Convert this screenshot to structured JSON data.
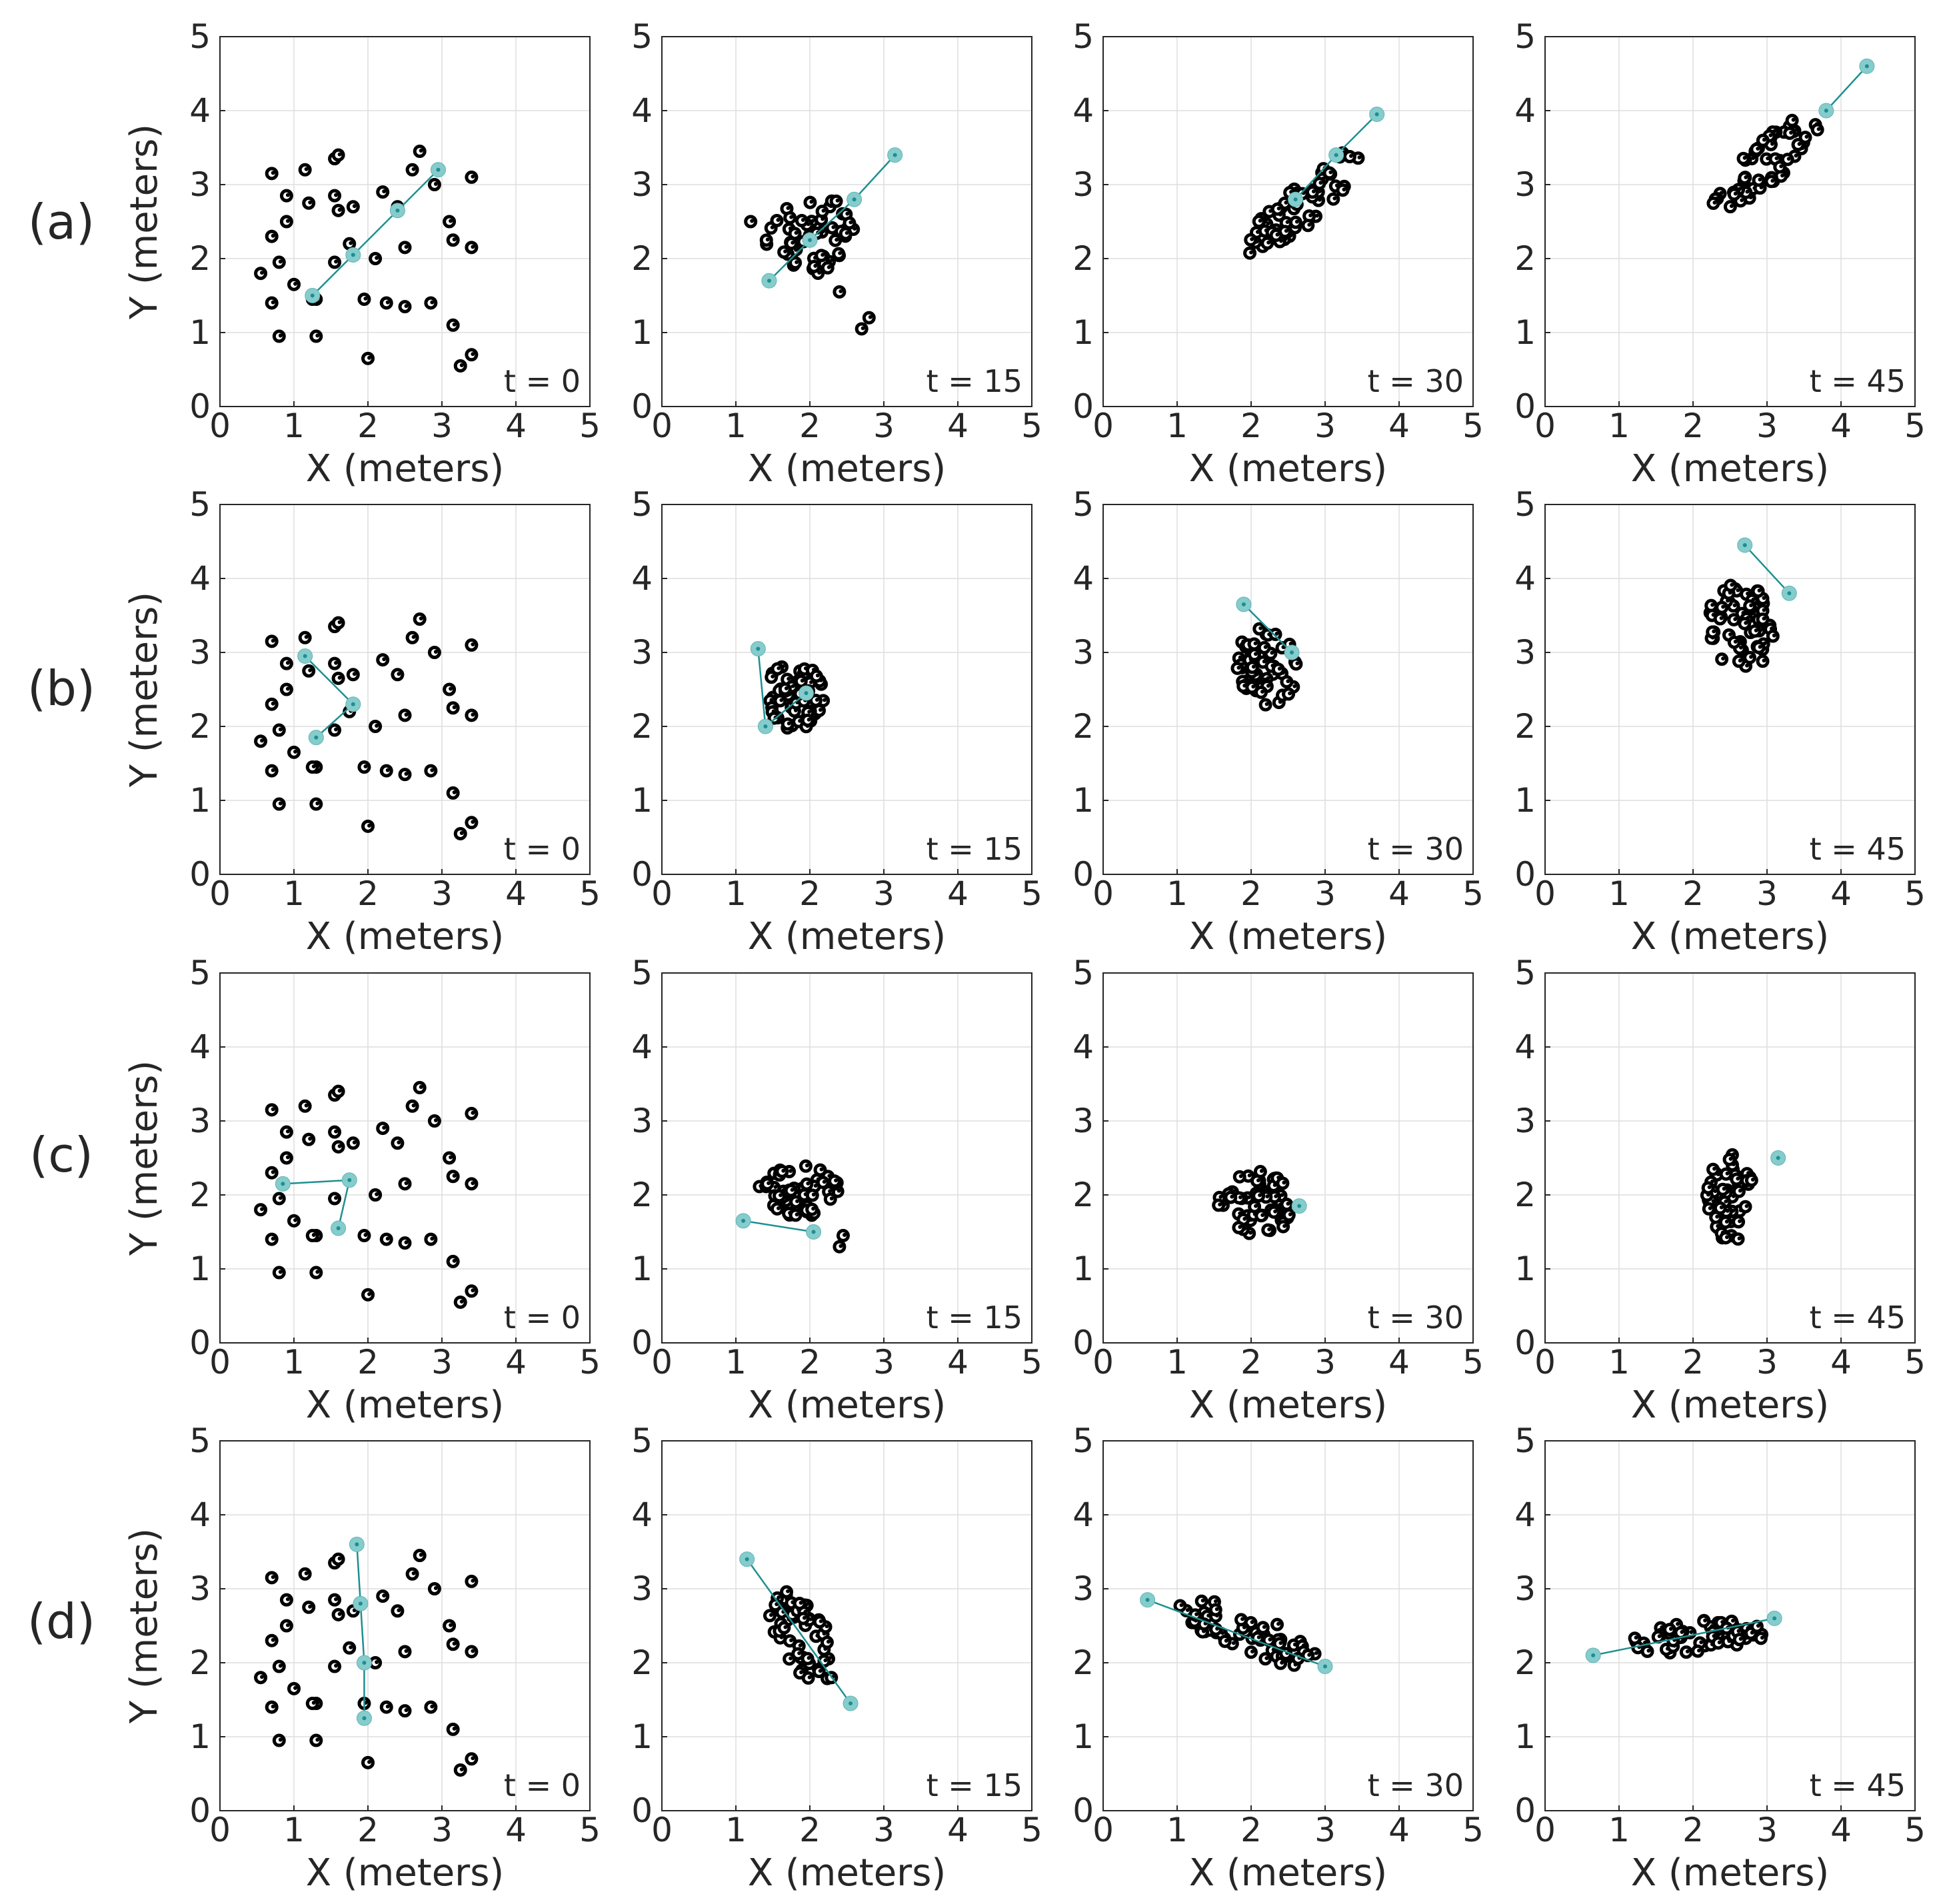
{
  "figure": {
    "row_labels": [
      "(a)",
      "(b)",
      "(c)",
      "(d)"
    ],
    "x_axis_label": "X (meters)",
    "y_axis_label": "Y (meters)",
    "time_labels": [
      "t = 0",
      "t = 15",
      "t = 30",
      "t = 45"
    ]
  },
  "colors": {
    "agent": "#000000",
    "leader_link": "#1e8f8f",
    "leader_marker": "#86cccc",
    "grid": "#dedede",
    "axis": "#262626"
  },
  "chart_data": {
    "type": "scatter",
    "description": "4 x 4 grid of scatter plots of agent positions; rows (a)-(d) are scenarios, columns are time steps",
    "xlim": [
      0,
      5
    ],
    "ylim": [
      0,
      5
    ],
    "xticks": [
      0,
      1,
      2,
      3,
      4,
      5
    ],
    "yticks": [
      0,
      1,
      2,
      3,
      4,
      5
    ],
    "grid": true,
    "initial_positions": [
      [
        0.7,
        3.15
      ],
      [
        1.15,
        3.2
      ],
      [
        1.55,
        3.35
      ],
      [
        1.6,
        3.4
      ],
      [
        0.9,
        2.85
      ],
      [
        1.55,
        2.85
      ],
      [
        1.8,
        2.7
      ],
      [
        0.7,
        2.3
      ],
      [
        0.9,
        2.5
      ],
      [
        0.55,
        1.8
      ],
      [
        0.7,
        1.4
      ],
      [
        0.8,
        1.95
      ],
      [
        1.0,
        1.65
      ],
      [
        0.8,
        0.95
      ],
      [
        1.3,
        0.95
      ],
      [
        1.3,
        1.45
      ],
      [
        1.55,
        1.95
      ],
      [
        1.6,
        2.65
      ],
      [
        1.75,
        2.2
      ],
      [
        1.95,
        1.45
      ],
      [
        2.25,
        1.4
      ],
      [
        2.5,
        1.35
      ],
      [
        2.85,
        1.4
      ],
      [
        3.15,
        1.1
      ],
      [
        3.25,
        0.55
      ],
      [
        3.4,
        0.7
      ],
      [
        2.0,
        0.65
      ],
      [
        2.2,
        2.9
      ],
      [
        2.5,
        2.15
      ],
      [
        2.6,
        3.2
      ],
      [
        2.7,
        3.45
      ],
      [
        2.9,
        3.0
      ],
      [
        3.1,
        2.5
      ],
      [
        3.15,
        2.25
      ],
      [
        3.4,
        3.1
      ],
      [
        3.4,
        2.15
      ],
      [
        2.4,
        2.7
      ],
      [
        1.25,
        1.45
      ],
      [
        1.2,
        2.75
      ],
      [
        2.1,
        2.0
      ]
    ],
    "panels": [
      {
        "row": "(a)",
        "t": 0,
        "leaders": [
          [
            1.25,
            1.5
          ],
          [
            1.8,
            2.05
          ],
          [
            2.4,
            2.65
          ],
          [
            2.95,
            3.2
          ]
        ]
      },
      {
        "row": "(a)",
        "t": 15,
        "center": [
          2.0,
          2.3
        ],
        "spread": [
          0.65,
          0.5
        ],
        "angle": 35,
        "count": 52,
        "extras": [
          [
            1.2,
            2.5
          ],
          [
            2.4,
            1.55
          ],
          [
            2.7,
            1.05
          ],
          [
            2.8,
            1.2
          ]
        ],
        "leaders": [
          [
            1.45,
            1.7
          ],
          [
            2.0,
            2.25
          ],
          [
            2.6,
            2.8
          ],
          [
            3.15,
            3.4
          ]
        ]
      },
      {
        "row": "(a)",
        "t": 30,
        "center": [
          2.7,
          2.75
        ],
        "spread": [
          1.0,
          0.28
        ],
        "angle": 42,
        "count": 56,
        "leaders": [
          [
            2.6,
            2.8
          ],
          [
            3.15,
            3.4
          ],
          [
            3.7,
            3.95
          ]
        ]
      },
      {
        "row": "(a)",
        "t": 45,
        "center": [
          3.0,
          3.3
        ],
        "spread": [
          0.95,
          0.28
        ],
        "angle": 42,
        "count": 56,
        "leaders": [
          [
            3.8,
            4.0
          ],
          [
            4.35,
            4.6
          ]
        ]
      },
      {
        "row": "(b)",
        "t": 0,
        "leaders": [
          [
            1.15,
            2.95
          ],
          [
            1.8,
            2.3
          ],
          [
            1.3,
            1.85
          ]
        ]
      },
      {
        "row": "(b)",
        "t": 15,
        "center": [
          1.8,
          2.4
        ],
        "spread": [
          0.42,
          0.45
        ],
        "angle": 20,
        "count": 55,
        "leaders": [
          [
            1.3,
            3.05
          ],
          [
            1.4,
            2.0
          ],
          [
            1.95,
            2.45
          ]
        ]
      },
      {
        "row": "(b)",
        "t": 30,
        "center": [
          2.2,
          2.8
        ],
        "spread": [
          0.42,
          0.55
        ],
        "angle": 10,
        "count": 58,
        "leaders": [
          [
            1.9,
            3.65
          ],
          [
            2.55,
            3.0
          ]
        ]
      },
      {
        "row": "(b)",
        "t": 45,
        "center": [
          2.65,
          3.35
        ],
        "spread": [
          0.45,
          0.6
        ],
        "angle": 10,
        "count": 58,
        "leaders": [
          [
            2.7,
            4.45
          ],
          [
            3.3,
            3.8
          ]
        ]
      },
      {
        "row": "(c)",
        "t": 0,
        "leaders": [
          [
            0.85,
            2.15
          ],
          [
            1.75,
            2.2
          ],
          [
            1.6,
            1.55
          ]
        ]
      },
      {
        "row": "(c)",
        "t": 15,
        "center": [
          1.85,
          2.05
        ],
        "spread": [
          0.55,
          0.35
        ],
        "angle": 0,
        "count": 54,
        "extras": [
          [
            2.4,
            1.3
          ],
          [
            2.45,
            1.45
          ]
        ],
        "leaders": [
          [
            1.1,
            1.65
          ],
          [
            2.05,
            1.5
          ]
        ]
      },
      {
        "row": "(c)",
        "t": 30,
        "center": [
          2.1,
          1.9
        ],
        "spread": [
          0.55,
          0.45
        ],
        "angle": 0,
        "count": 58,
        "leaders": [
          [
            2.65,
            1.85
          ]
        ]
      },
      {
        "row": "(c)",
        "t": 45,
        "center": [
          2.5,
          1.95
        ],
        "spread": [
          0.32,
          0.6
        ],
        "angle": 0,
        "count": 58,
        "leaders": [
          [
            3.15,
            2.5
          ]
        ]
      },
      {
        "row": "(d)",
        "t": 0,
        "leaders": [
          [
            1.85,
            3.6
          ],
          [
            1.9,
            2.8
          ],
          [
            1.95,
            2.0
          ],
          [
            1.95,
            1.25
          ]
        ]
      },
      {
        "row": "(d)",
        "t": 15,
        "center": [
          1.9,
          2.35
        ],
        "spread": [
          0.7,
          0.35
        ],
        "angle": -60,
        "count": 56,
        "leaders": [
          [
            1.15,
            3.4
          ],
          [
            2.55,
            1.45
          ]
        ]
      },
      {
        "row": "(d)",
        "t": 30,
        "center": [
          1.95,
          2.4
        ],
        "spread": [
          1.0,
          0.28
        ],
        "angle": -22,
        "count": 58,
        "leaders": [
          [
            0.6,
            2.85
          ],
          [
            3.0,
            1.95
          ]
        ]
      },
      {
        "row": "(d)",
        "t": 45,
        "center": [
          2.05,
          2.35
        ],
        "spread": [
          0.95,
          0.22
        ],
        "angle": 4,
        "count": 56,
        "leaders": [
          [
            0.65,
            2.1
          ],
          [
            3.1,
            2.6
          ]
        ]
      }
    ]
  }
}
